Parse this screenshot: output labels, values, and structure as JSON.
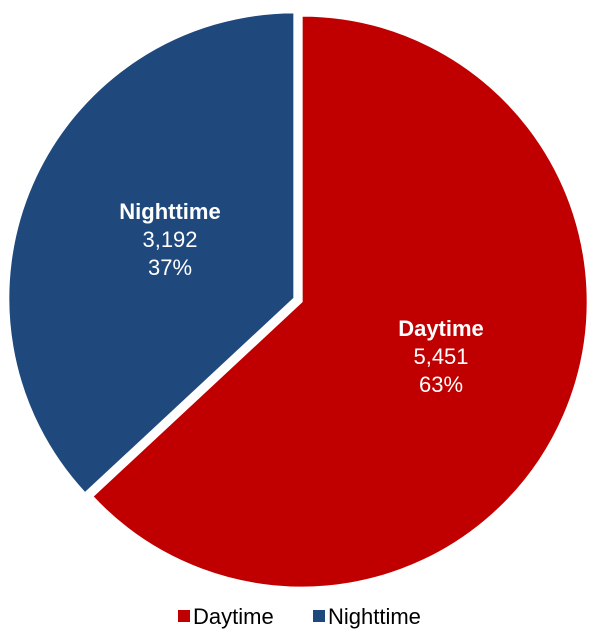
{
  "chart_data": {
    "type": "pie",
    "title": "",
    "slices": [
      {
        "name": "Daytime",
        "value": 5451,
        "value_label": "5,451",
        "percent_label": "63%",
        "color": "#C00000"
      },
      {
        "name": "Nighttime",
        "value": 3192,
        "value_label": "3,192",
        "percent_label": "37%",
        "color": "#1F497D"
      }
    ],
    "legend": {
      "position": "bottom",
      "entries": [
        "Daytime",
        "Nighttime"
      ]
    },
    "data_labels": true
  }
}
